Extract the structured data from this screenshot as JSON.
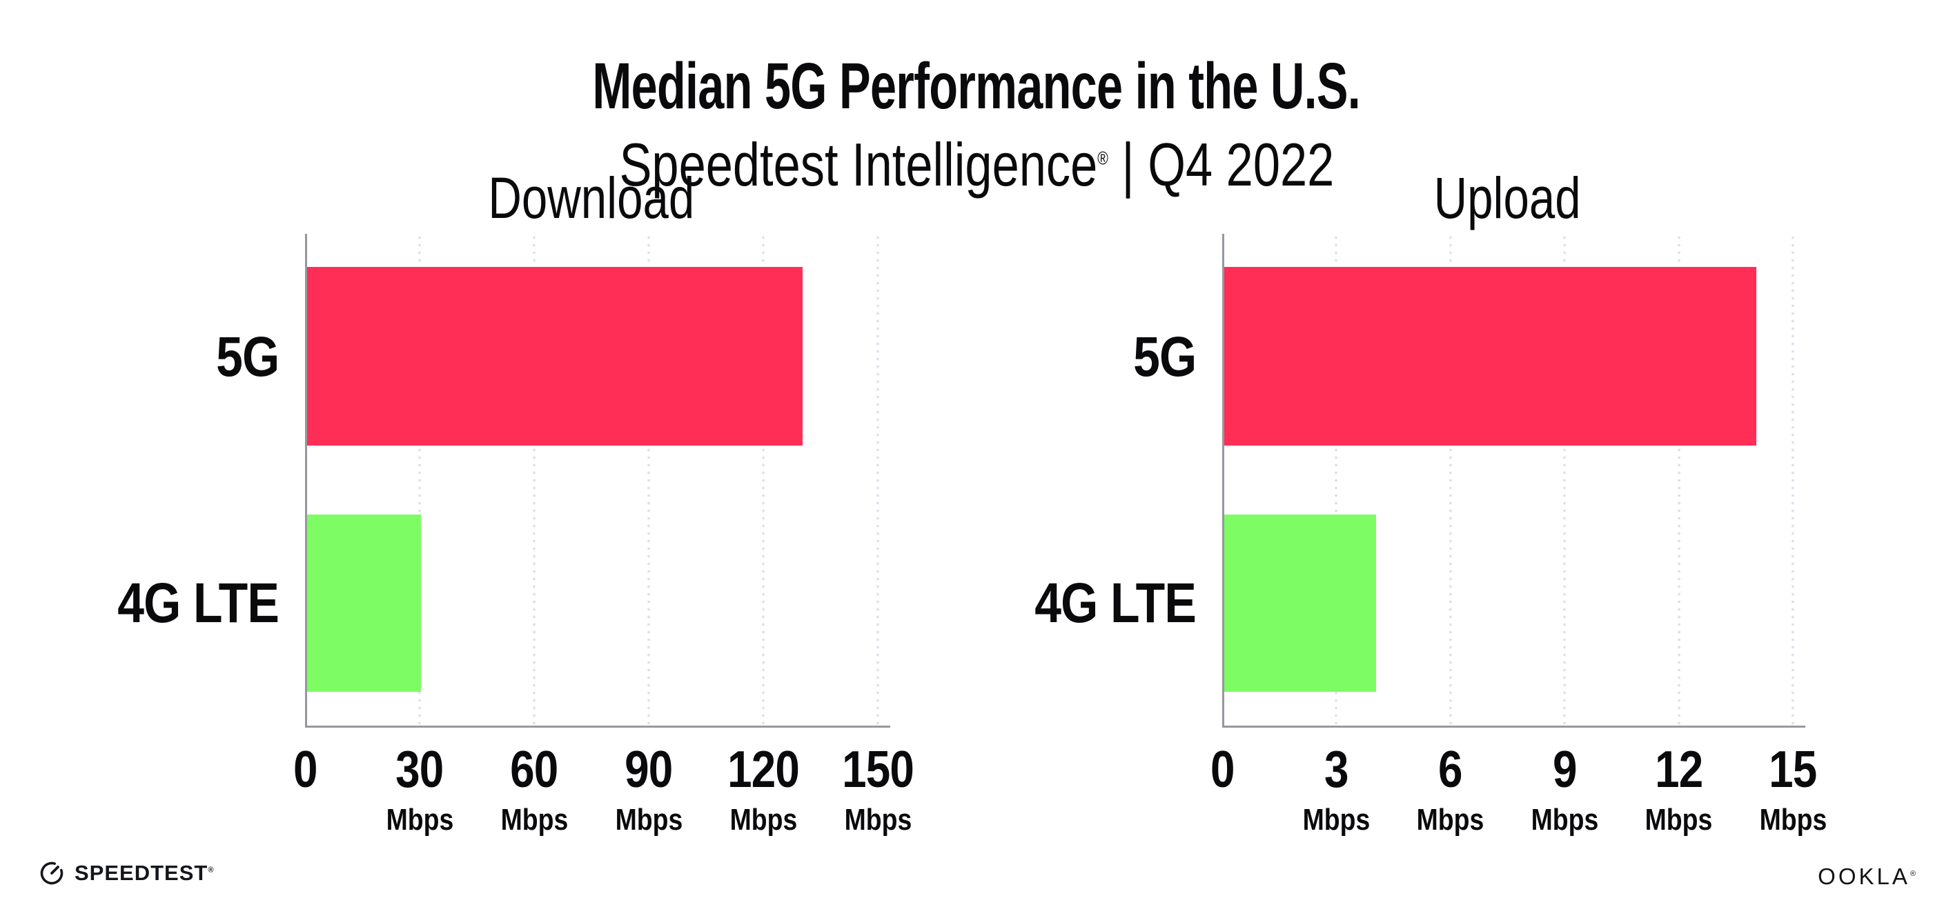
{
  "header": {
    "title": "Median 5G Performance in the U.S.",
    "subtitle_brand": "Speedtest Intelligence",
    "subtitle_reg": "®",
    "subtitle_rest": " | Q4 2022"
  },
  "colors": {
    "bar_pink": "#FF2E56",
    "bar_green": "#7DFC64",
    "grid_dot": "#E0E0EB",
    "axis_line": "#97979F",
    "text_dark": "#0A0A0C"
  },
  "footer": {
    "speedtest_label": "SPEEDTEST",
    "speedtest_reg": "®",
    "ookla_label": "OOKLA",
    "ookla_reg": "®",
    "speedtest_icon": "gauge-icon"
  },
  "chart_data": [
    {
      "type": "bar",
      "orientation": "horizontal",
      "title": "Download",
      "categories": [
        "5G",
        "4G LTE"
      ],
      "values": [
        130,
        30
      ],
      "unit": "Mbps",
      "xlim": [
        0,
        150
      ],
      "xticks": [
        0,
        30,
        60,
        90,
        120,
        150
      ],
      "xtick_labels": [
        "0",
        "30",
        "60",
        "90",
        "120",
        "150"
      ],
      "bar_colors": [
        "#FF2E56",
        "#7DFC64"
      ],
      "grid": "dotted-vertical-gridlines",
      "legend": "none"
    },
    {
      "type": "bar",
      "orientation": "horizontal",
      "title": "Upload",
      "categories": [
        "5G",
        "4G LTE"
      ],
      "values": [
        14,
        4
      ],
      "unit": "Mbps",
      "xlim": [
        0,
        15
      ],
      "xticks": [
        0,
        3,
        6,
        9,
        12,
        15
      ],
      "xtick_labels": [
        "0",
        "3",
        "6",
        "9",
        "12",
        "15"
      ],
      "bar_colors": [
        "#FF2E56",
        "#7DFC64"
      ],
      "grid": "dotted-vertical-gridlines",
      "legend": "none"
    }
  ]
}
